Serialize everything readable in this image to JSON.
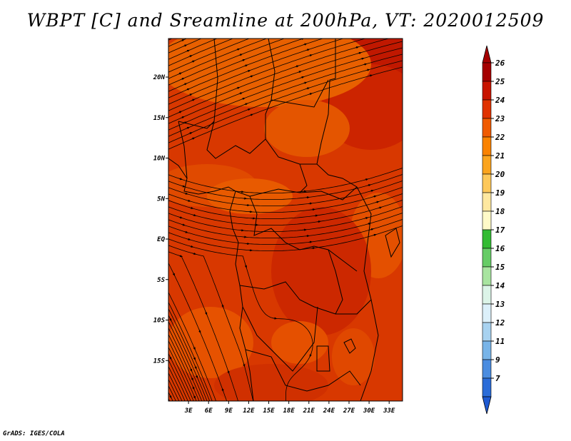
{
  "title": "WBPT [C] and Sreamline at 200hPa, VT: 2020012509",
  "footer": "GrADS: IGES/COLA",
  "map": {
    "lon_labels": [
      "3E",
      "6E",
      "9E",
      "12E",
      "15E",
      "18E",
      "21E",
      "24E",
      "27E",
      "30E",
      "33E"
    ],
    "lat_labels": [
      "20N",
      "15N",
      "10N",
      "5N",
      "EQ",
      "5S",
      "10S",
      "15S"
    ],
    "lon_range": [
      0,
      35
    ],
    "lat_range": [
      -20,
      25
    ]
  },
  "colorbar": {
    "labels": [
      "26",
      "25",
      "24",
      "23",
      "22",
      "21",
      "20",
      "19",
      "18",
      "17",
      "16",
      "15",
      "14",
      "13",
      "12",
      "11",
      "9",
      "7"
    ],
    "colors": [
      "#a50000",
      "#c81400",
      "#e03200",
      "#f05a00",
      "#fa8200",
      "#fba41e",
      "#fdc85a",
      "#fee8a0",
      "#fffac8",
      "#33bb33",
      "#66cc66",
      "#a8e4a0",
      "#dcf4e8",
      "#dcf0fa",
      "#a8d2f0",
      "#78b4e8",
      "#4a8ce0",
      "#2a6cd8"
    ],
    "top_arrow_color": "#a50000",
    "bottom_arrow_color": "#1e5ad2"
  }
}
